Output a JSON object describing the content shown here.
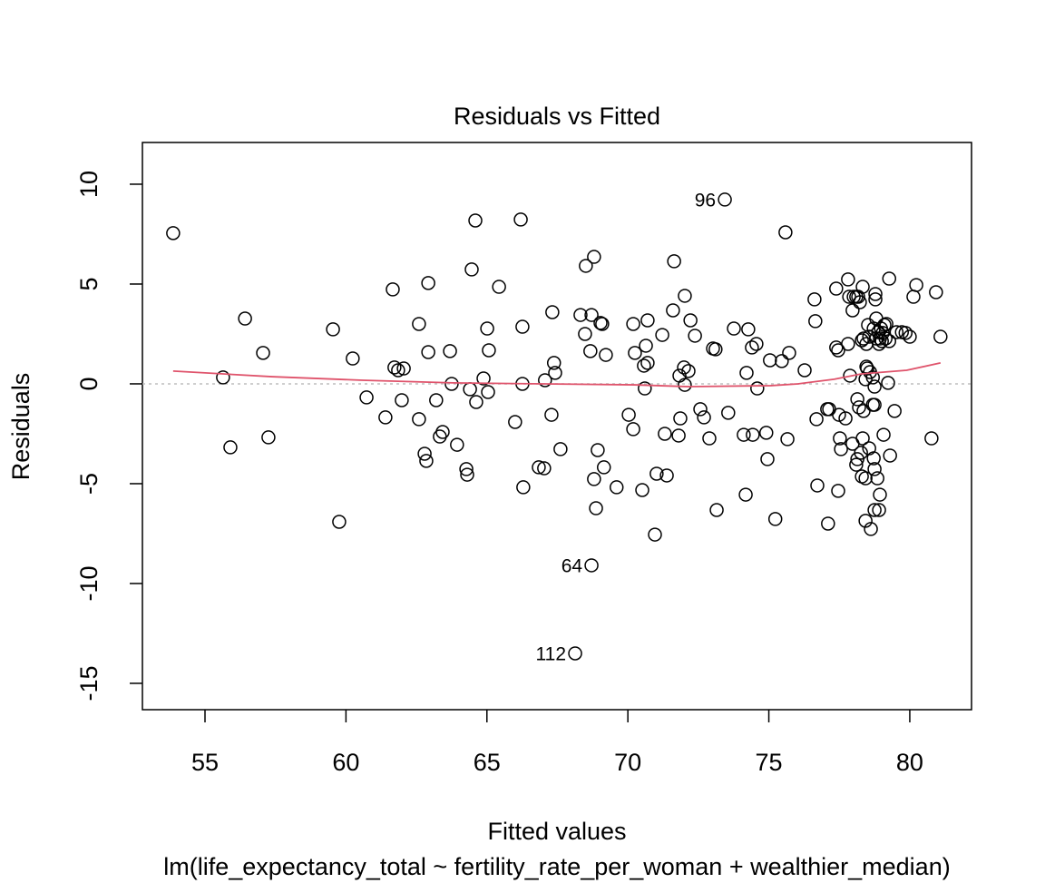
{
  "chart_data": {
    "type": "scatter",
    "title": "Residuals vs Fitted",
    "xlabel": "Fitted values",
    "ylabel": "Residuals",
    "subtitle": "lm(life_expectancy_total ~ fertility_rate_per_woman + wealthier_median)",
    "xlim": [
      52.78,
      82.19
    ],
    "ylim": [
      -16.32,
      12.09
    ],
    "xticks": [
      55,
      60,
      65,
      70,
      75,
      80
    ],
    "yticks": [
      -15,
      -10,
      -5,
      0,
      5,
      10
    ],
    "point_color": "#000000",
    "reference_line": {
      "y": 0,
      "color": "#bebebe"
    },
    "x": [
      53.87,
      55.64,
      55.9,
      56.42,
      57.06,
      57.25,
      59.54,
      59.76,
      60.24,
      60.73,
      61.4,
      61.66,
      61.72,
      61.85,
      62.05,
      61.98,
      62.59,
      62.59,
      62.79,
      62.85,
      62.92,
      62.92,
      63.2,
      63.33,
      63.43,
      63.69,
      63.75,
      63.94,
      64.27,
      64.3,
      64.4,
      64.46,
      64.59,
      64.62,
      64.88,
      65.01,
      65.04,
      65.07,
      65.43,
      66.0,
      66.2,
      66.26,
      66.26,
      66.29,
      66.84,
      67.03,
      67.06,
      67.29,
      67.32,
      67.38,
      67.42,
      67.61,
      68.32,
      68.48,
      68.51,
      68.67,
      68.71,
      68.71,
      68.8,
      68.8,
      68.87,
      68.93,
      69.03,
      69.09,
      69.15,
      69.22,
      68.13,
      69.6,
      70.03,
      70.19,
      70.19,
      70.25,
      70.51,
      70.57,
      70.6,
      70.64,
      70.7,
      70.7,
      70.96,
      71.02,
      71.22,
      71.31,
      71.38,
      71.6,
      71.64,
      71.8,
      71.83,
      71.86,
      71.99,
      72.02,
      72.02,
      72.15,
      72.22,
      72.38,
      72.57,
      72.7,
      72.89,
      73.02,
      73.11,
      73.15,
      73.44,
      73.56,
      73.76,
      74.11,
      74.18,
      74.21,
      74.27,
      74.4,
      74.43,
      74.56,
      74.59,
      74.91,
      74.95,
      75.04,
      75.23,
      75.46,
      75.59,
      75.66,
      75.72,
      76.27,
      76.62,
      76.65,
      76.69,
      76.72,
      77.07,
      77.1,
      77.14,
      77.39,
      77.39,
      77.46,
      77.49,
      77.46,
      77.52,
      77.56,
      77.72,
      77.81,
      77.81,
      77.85,
      77.88,
      77.97,
      77.97,
      78.01,
      78.1,
      78.1,
      78.14,
      78.14,
      78.17,
      78.2,
      78.23,
      78.27,
      78.3,
      78.3,
      78.33,
      78.33,
      78.36,
      78.36,
      78.43,
      78.43,
      78.43,
      78.46,
      78.46,
      78.49,
      78.52,
      78.56,
      78.56,
      78.59,
      78.62,
      78.69,
      78.69,
      78.72,
      78.72,
      78.75,
      78.75,
      78.75,
      78.75,
      78.78,
      78.78,
      78.81,
      78.81,
      78.85,
      78.88,
      78.91,
      78.91,
      78.94,
      78.94,
      78.98,
      79.01,
      79.04,
      79.07,
      79.1,
      79.14,
      79.17,
      79.23,
      79.27,
      79.27,
      79.3,
      79.46,
      79.53,
      79.72,
      79.85,
      80.0,
      80.13,
      80.23,
      80.77,
      80.93,
      81.09
    ],
    "y": [
      7.55,
      0.32,
      -3.18,
      3.27,
      1.55,
      -2.68,
      2.73,
      -6.91,
      1.27,
      -0.68,
      -1.68,
      4.73,
      0.82,
      0.68,
      0.77,
      -0.82,
      3.0,
      -1.77,
      -3.5,
      -3.86,
      5.05,
      1.59,
      -0.82,
      -2.64,
      -2.41,
      1.64,
      0.0,
      -3.05,
      -4.27,
      -4.55,
      -0.27,
      5.73,
      8.18,
      -0.91,
      0.27,
      2.77,
      -0.41,
      1.68,
      4.86,
      -1.91,
      8.23,
      2.86,
      0.0,
      -5.18,
      -4.18,
      -4.23,
      0.18,
      -1.55,
      3.59,
      1.05,
      0.55,
      -3.27,
      3.45,
      2.5,
      5.91,
      1.64,
      3.45,
      -9.09,
      6.36,
      -4.77,
      -6.23,
      -3.32,
      3.05,
      3.0,
      -4.18,
      1.45,
      -13.5,
      -5.18,
      -1.55,
      3.0,
      -2.27,
      1.55,
      -5.32,
      0.91,
      -0.23,
      1.91,
      3.18,
      1.05,
      -7.55,
      -4.5,
      2.45,
      -2.5,
      -4.59,
      3.68,
      6.14,
      -2.59,
      0.41,
      -1.73,
      0.82,
      4.41,
      -0.05,
      0.64,
      3.18,
      2.41,
      -1.27,
      -1.68,
      -2.73,
      1.77,
      1.73,
      -6.32,
      9.23,
      -1.45,
      2.77,
      -2.55,
      -5.55,
      0.55,
      2.73,
      1.82,
      -2.55,
      2.0,
      -0.23,
      -2.45,
      -3.77,
      1.18,
      -6.77,
      1.14,
      7.59,
      -2.77,
      1.55,
      0.68,
      4.23,
      3.14,
      -1.77,
      -5.09,
      -1.27,
      -7.0,
      -1.27,
      4.77,
      1.82,
      1.68,
      -1.55,
      -5.36,
      -2.73,
      -3.27,
      -1.73,
      5.23,
      2.0,
      4.36,
      0.41,
      -3.0,
      3.68,
      4.36,
      4.36,
      -4.05,
      -0.77,
      -3.77,
      4.36,
      -1.18,
      4.09,
      -3.45,
      -4.64,
      2.18,
      4.86,
      -2.73,
      -1.36,
      2.27,
      0.23,
      -4.73,
      -6.86,
      2.0,
      0.86,
      0.77,
      2.95,
      2.36,
      -3.23,
      0.59,
      -7.27,
      -1.05,
      0.32,
      2.77,
      -3.73,
      -0.14,
      -1.05,
      -4.27,
      -6.32,
      4.5,
      4.23,
      3.27,
      2.27,
      -4.73,
      2.59,
      2.0,
      -6.32,
      -5.55,
      2.27,
      2.77,
      2.14,
      2.55,
      -2.55,
      2.95,
      2.27,
      3.0,
      0.05,
      5.27,
      2.14,
      -3.59,
      -1.36,
      2.59,
      2.59,
      2.55,
      2.36,
      4.36,
      4.95,
      -2.73,
      4.59,
      2.36
    ],
    "smooth": {
      "color": "#DF536B",
      "x": [
        53.87,
        57.37,
        60.59,
        63.8,
        67.02,
        70.24,
        72.17,
        75.07,
        76.03,
        77.32,
        78.28,
        79.89,
        81.09
      ],
      "y": [
        0.64,
        0.36,
        0.18,
        0.05,
        0,
        -0.05,
        -0.14,
        -0.09,
        0,
        0.23,
        0.5,
        0.68,
        1.05
      ]
    },
    "annotations": [
      {
        "text": "96",
        "x": 73.44,
        "y": 9.23
      },
      {
        "text": "64",
        "x": 68.71,
        "y": -9.09
      },
      {
        "text": "112",
        "x": 68.13,
        "y": -13.5
      }
    ]
  }
}
